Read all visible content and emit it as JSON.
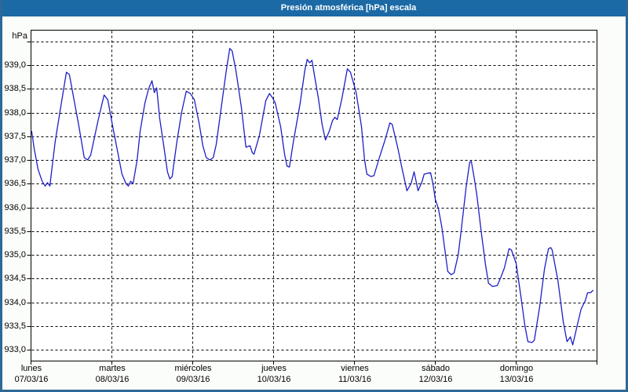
{
  "window": {
    "title": "Presión atmosférica [hPa] escala"
  },
  "colors": {
    "titlebar": "#1b6aa5",
    "title_text": "#ffffff",
    "frame": "#2e6897",
    "page_bg": "#fbfdfa",
    "plot_bg": "#ffffff",
    "plot_border": "#000000",
    "grid": "#000000",
    "axis_text": "#000000",
    "line": "#1e1ec8"
  },
  "chart_data": {
    "type": "line",
    "title": "Presión atmosférica [hPa] escala",
    "y_unit_label": "hPa",
    "ylabel": "hPa",
    "xlabel": "",
    "ylim": [
      933.0,
      939.5
    ],
    "ytick_step": 0.5,
    "grid": "dashed",
    "legend": "none",
    "yticks": [
      {
        "value": 939.0,
        "label": "939,0"
      },
      {
        "value": 938.5,
        "label": "938,5"
      },
      {
        "value": 938.0,
        "label": "938,0"
      },
      {
        "value": 937.5,
        "label": "937,5"
      },
      {
        "value": 937.0,
        "label": "937,0"
      },
      {
        "value": 936.5,
        "label": "936,5"
      },
      {
        "value": 936.0,
        "label": "936,0"
      },
      {
        "value": 935.5,
        "label": "935,5"
      },
      {
        "value": 935.0,
        "label": "935,0"
      },
      {
        "value": 934.5,
        "label": "934,5"
      },
      {
        "value": 934.0,
        "label": "934,0"
      },
      {
        "value": 933.5,
        "label": "933,5"
      },
      {
        "value": 933.0,
        "label": "933,0"
      }
    ],
    "unlabeled_gridlines": [
      939.5
    ],
    "x_axis": {
      "span_hours": 168,
      "days": [
        {
          "name": "lunes",
          "date": "07/03/16"
        },
        {
          "name": "martes",
          "date": "08/03/16"
        },
        {
          "name": "miércoles",
          "date": "09/03/16"
        },
        {
          "name": "jueves",
          "date": "10/03/16"
        },
        {
          "name": "viernes",
          "date": "11/03/16"
        },
        {
          "name": "sábado",
          "date": "12/03/16"
        },
        {
          "name": "domingo",
          "date": "13/03/16"
        }
      ]
    },
    "series": [
      {
        "name": "Presión atmosférica [hPa]",
        "color": "#1e1ec8",
        "points": [
          [
            0.2,
            937.6
          ],
          [
            0.9,
            937.25
          ],
          [
            2.1,
            936.8
          ],
          [
            3.3,
            936.55
          ],
          [
            4.2,
            936.45
          ],
          [
            4.9,
            936.52
          ],
          [
            5.6,
            936.45
          ],
          [
            7.2,
            937.4
          ],
          [
            8.9,
            938.15
          ],
          [
            10.5,
            938.85
          ],
          [
            11.4,
            938.8
          ],
          [
            12.6,
            938.33
          ],
          [
            14.2,
            937.72
          ],
          [
            15.8,
            937.05
          ],
          [
            16.8,
            937.0
          ],
          [
            17.7,
            937.1
          ],
          [
            19.8,
            937.8
          ],
          [
            21.7,
            938.37
          ],
          [
            22.8,
            938.27
          ],
          [
            24.2,
            937.72
          ],
          [
            25.9,
            937.1
          ],
          [
            27.0,
            936.7
          ],
          [
            28.2,
            936.5
          ],
          [
            28.9,
            936.45
          ],
          [
            29.6,
            936.55
          ],
          [
            30.3,
            936.5
          ],
          [
            31.5,
            937.0
          ],
          [
            32.4,
            937.6
          ],
          [
            33.8,
            938.2
          ],
          [
            34.9,
            938.5
          ],
          [
            35.9,
            938.67
          ],
          [
            36.6,
            938.42
          ],
          [
            37.3,
            938.52
          ],
          [
            38.2,
            937.88
          ],
          [
            39.4,
            937.3
          ],
          [
            40.5,
            936.75
          ],
          [
            41.2,
            936.6
          ],
          [
            41.9,
            936.65
          ],
          [
            43.3,
            937.38
          ],
          [
            44.7,
            938.0
          ],
          [
            46.1,
            938.45
          ],
          [
            47.3,
            938.4
          ],
          [
            48.5,
            938.27
          ],
          [
            49.9,
            937.77
          ],
          [
            51.0,
            937.3
          ],
          [
            52.0,
            937.05
          ],
          [
            53.1,
            937.0
          ],
          [
            54.1,
            937.05
          ],
          [
            55.0,
            937.33
          ],
          [
            56.9,
            938.33
          ],
          [
            58.0,
            938.9
          ],
          [
            59.0,
            939.35
          ],
          [
            59.7,
            939.3
          ],
          [
            60.8,
            938.9
          ],
          [
            62.4,
            938.13
          ],
          [
            63.8,
            937.27
          ],
          [
            65.0,
            937.3
          ],
          [
            65.7,
            937.15
          ],
          [
            66.2,
            937.12
          ],
          [
            67.8,
            937.52
          ],
          [
            69.7,
            938.25
          ],
          [
            70.8,
            938.4
          ],
          [
            71.8,
            938.3
          ],
          [
            72.5,
            938.2
          ],
          [
            74.1,
            937.7
          ],
          [
            75.3,
            937.1
          ],
          [
            76.0,
            936.87
          ],
          [
            76.7,
            936.85
          ],
          [
            77.8,
            937.35
          ],
          [
            79.9,
            938.2
          ],
          [
            81.3,
            938.9
          ],
          [
            82.0,
            939.12
          ],
          [
            82.7,
            939.05
          ],
          [
            83.4,
            939.1
          ],
          [
            84.1,
            938.8
          ],
          [
            85.3,
            938.3
          ],
          [
            86.4,
            937.75
          ],
          [
            87.4,
            937.42
          ],
          [
            88.5,
            937.6
          ],
          [
            89.5,
            937.83
          ],
          [
            90.2,
            937.9
          ],
          [
            90.9,
            937.85
          ],
          [
            92.3,
            938.3
          ],
          [
            93.9,
            938.92
          ],
          [
            94.8,
            938.85
          ],
          [
            96.5,
            938.43
          ],
          [
            98.1,
            937.7
          ],
          [
            99.0,
            937.0
          ],
          [
            99.7,
            936.7
          ],
          [
            100.9,
            936.65
          ],
          [
            101.8,
            936.67
          ],
          [
            103.4,
            937.05
          ],
          [
            104.9,
            937.38
          ],
          [
            105.8,
            937.6
          ],
          [
            106.5,
            937.78
          ],
          [
            107.2,
            937.75
          ],
          [
            108.8,
            937.28
          ],
          [
            110.2,
            936.8
          ],
          [
            111.6,
            936.35
          ],
          [
            112.8,
            936.5
          ],
          [
            113.7,
            936.75
          ],
          [
            114.9,
            936.35
          ],
          [
            116.1,
            936.55
          ],
          [
            116.7,
            936.7
          ],
          [
            117.9,
            936.72
          ],
          [
            118.6,
            936.73
          ],
          [
            119.3,
            936.5
          ],
          [
            120.0,
            936.17
          ],
          [
            120.9,
            935.98
          ],
          [
            121.9,
            935.6
          ],
          [
            122.6,
            935.23
          ],
          [
            123.7,
            934.65
          ],
          [
            124.7,
            934.58
          ],
          [
            125.6,
            934.62
          ],
          [
            126.8,
            935.0
          ],
          [
            127.7,
            935.51
          ],
          [
            129.1,
            936.4
          ],
          [
            130.2,
            936.95
          ],
          [
            130.7,
            936.97
          ],
          [
            131.6,
            936.6
          ],
          [
            132.3,
            936.28
          ],
          [
            133.7,
            935.45
          ],
          [
            134.9,
            934.8
          ],
          [
            135.8,
            934.4
          ],
          [
            137.0,
            934.33
          ],
          [
            138.4,
            934.35
          ],
          [
            139.6,
            934.55
          ],
          [
            140.5,
            934.72
          ],
          [
            141.9,
            935.13
          ],
          [
            142.6,
            935.1
          ],
          [
            144.0,
            934.82
          ],
          [
            145.4,
            934.13
          ],
          [
            146.6,
            933.5
          ],
          [
            147.5,
            933.17
          ],
          [
            148.7,
            933.15
          ],
          [
            149.4,
            933.2
          ],
          [
            151.0,
            933.91
          ],
          [
            152.4,
            934.7
          ],
          [
            153.6,
            935.13
          ],
          [
            154.3,
            935.15
          ],
          [
            154.7,
            935.1
          ],
          [
            156.4,
            934.46
          ],
          [
            158.0,
            933.58
          ],
          [
            159.1,
            933.17
          ],
          [
            160.1,
            933.27
          ],
          [
            160.8,
            933.1
          ],
          [
            162.2,
            933.53
          ],
          [
            163.3,
            933.86
          ],
          [
            164.5,
            934.03
          ],
          [
            165.2,
            934.2
          ],
          [
            166.1,
            934.2
          ],
          [
            166.8,
            934.25
          ]
        ]
      }
    ]
  }
}
